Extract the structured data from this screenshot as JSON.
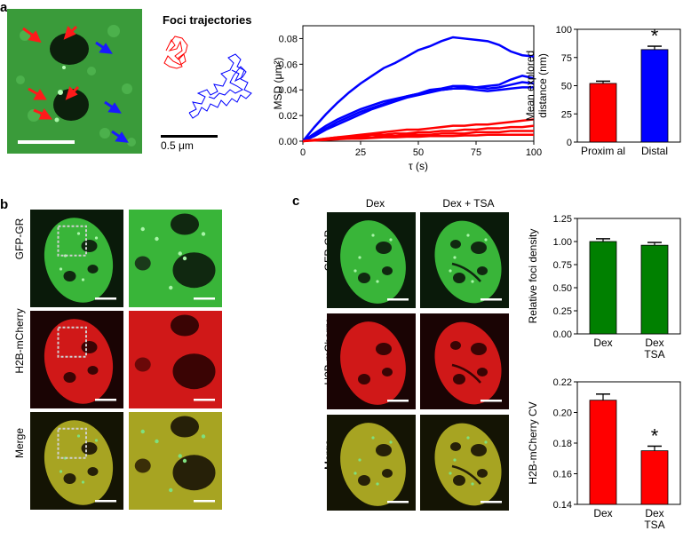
{
  "panels": {
    "a": "a",
    "b": "b",
    "c": "c"
  },
  "panel_a": {
    "traj_title": "Foci trajectories",
    "scale_label": "0.5 μm"
  },
  "panel_b": {
    "row_labels": [
      "GFP-GR",
      "H2B-mCherry",
      "Merge"
    ]
  },
  "panel_c": {
    "col_labels": [
      "Dex",
      "Dex + TSA"
    ],
    "row_labels": [
      "GFP-GR",
      "H2B-mCherry",
      "Merge"
    ]
  },
  "colors": {
    "red": "#ff0000",
    "blue": "#0000ff",
    "green": "#008000",
    "gfp": "#2aa12a",
    "mcherry": "#c81010"
  },
  "chart_data": [
    {
      "id": "msd",
      "type": "line",
      "xlabel": "τ (s)",
      "ylabel": "MSD (μm²)",
      "xlim": [
        0,
        100
      ],
      "ylim": [
        0,
        0.09
      ],
      "xticks": [
        "0",
        "25",
        "50",
        "75",
        "100"
      ],
      "yticks": [
        "0.00",
        "0.02",
        "0.04",
        "0.06",
        "0.08"
      ],
      "x": [
        0,
        5,
        10,
        15,
        20,
        25,
        30,
        35,
        40,
        45,
        50,
        55,
        60,
        65,
        70,
        75,
        80,
        85,
        90,
        95,
        100
      ],
      "series": [
        {
          "color": "#0000ff",
          "values": [
            0,
            0.011,
            0.021,
            0.03,
            0.038,
            0.045,
            0.051,
            0.057,
            0.061,
            0.066,
            0.071,
            0.074,
            0.078,
            0.081,
            0.08,
            0.079,
            0.078,
            0.075,
            0.07,
            0.067,
            0.066
          ]
        },
        {
          "color": "#0000ff",
          "values": [
            0,
            0.006,
            0.012,
            0.017,
            0.021,
            0.025,
            0.028,
            0.031,
            0.033,
            0.035,
            0.037,
            0.039,
            0.04,
            0.041,
            0.042,
            0.042,
            0.043,
            0.044,
            0.048,
            0.051,
            0.049
          ]
        },
        {
          "color": "#0000ff",
          "values": [
            0,
            0.005,
            0.01,
            0.015,
            0.019,
            0.023,
            0.026,
            0.029,
            0.032,
            0.035,
            0.037,
            0.04,
            0.041,
            0.043,
            0.043,
            0.042,
            0.041,
            0.042,
            0.044,
            0.046,
            0.045
          ]
        },
        {
          "color": "#0000ff",
          "values": [
            0,
            0.004,
            0.009,
            0.013,
            0.017,
            0.021,
            0.025,
            0.028,
            0.031,
            0.034,
            0.036,
            0.038,
            0.04,
            0.041,
            0.041,
            0.04,
            0.039,
            0.04,
            0.041,
            0.042,
            0.042
          ]
        },
        {
          "color": "#ff0000",
          "values": [
            0,
            0.001,
            0.002,
            0.003,
            0.004,
            0.005,
            0.006,
            0.007,
            0.008,
            0.009,
            0.009,
            0.01,
            0.011,
            0.012,
            0.012,
            0.013,
            0.013,
            0.014,
            0.015,
            0.016,
            0.017
          ]
        },
        {
          "color": "#ff0000",
          "values": [
            0,
            0.001,
            0.002,
            0.003,
            0.003,
            0.004,
            0.005,
            0.005,
            0.006,
            0.006,
            0.007,
            0.007,
            0.008,
            0.008,
            0.009,
            0.009,
            0.01,
            0.01,
            0.011,
            0.011,
            0.012
          ]
        },
        {
          "color": "#ff0000",
          "values": [
            0,
            0.001,
            0.001,
            0.002,
            0.002,
            0.003,
            0.003,
            0.004,
            0.004,
            0.005,
            0.005,
            0.005,
            0.006,
            0.006,
            0.006,
            0.007,
            0.007,
            0.007,
            0.008,
            0.008,
            0.008
          ]
        },
        {
          "color": "#ff0000",
          "values": [
            0,
            0.0005,
            0.001,
            0.0015,
            0.002,
            0.002,
            0.0025,
            0.003,
            0.003,
            0.0035,
            0.0035,
            0.004,
            0.004,
            0.004,
            0.0045,
            0.0045,
            0.005,
            0.005,
            0.005,
            0.005,
            0.005
          ]
        }
      ]
    },
    {
      "id": "explored",
      "type": "bar",
      "categories": [
        "Proxim al",
        "Distal"
      ],
      "values": [
        52,
        82
      ],
      "errors": [
        2,
        3
      ],
      "colors": [
        "#ff0000",
        "#0000ff"
      ],
      "ylabel": "Mean explored distance (nm)",
      "ylabel_lines": [
        "Mean explored",
        "distance (nm)"
      ],
      "ylim": [
        0,
        100
      ],
      "yticks": [
        "0",
        "25",
        "50",
        "75",
        "100"
      ],
      "annotation": "*"
    },
    {
      "id": "foci",
      "type": "bar",
      "categories": [
        "Dex",
        "Dex TSA"
      ],
      "category_lines": [
        [
          "Dex"
        ],
        [
          "Dex",
          "TSA"
        ]
      ],
      "values": [
        1.0,
        0.96
      ],
      "errors": [
        0.03,
        0.03
      ],
      "colors": [
        "#008000",
        "#008000"
      ],
      "ylabel": "Relative foci density",
      "ylim": [
        0,
        1.25
      ],
      "yticks": [
        "0.00",
        "0.25",
        "0.50",
        "0.75",
        "1.00",
        "1.25"
      ]
    },
    {
      "id": "cv",
      "type": "bar",
      "categories": [
        "Dex",
        "Dex TSA"
      ],
      "category_lines": [
        [
          "Dex"
        ],
        [
          "Dex",
          "TSA"
        ]
      ],
      "values": [
        0.208,
        0.175
      ],
      "errors": [
        0.004,
        0.003
      ],
      "colors": [
        "#ff0000",
        "#ff0000"
      ],
      "ylabel": "H2B-mCherry CV",
      "ylim": [
        0.14,
        0.22
      ],
      "yticks": [
        "0.14",
        "0.16",
        "0.18",
        "0.20",
        "0.22"
      ],
      "annotation": "*"
    }
  ]
}
